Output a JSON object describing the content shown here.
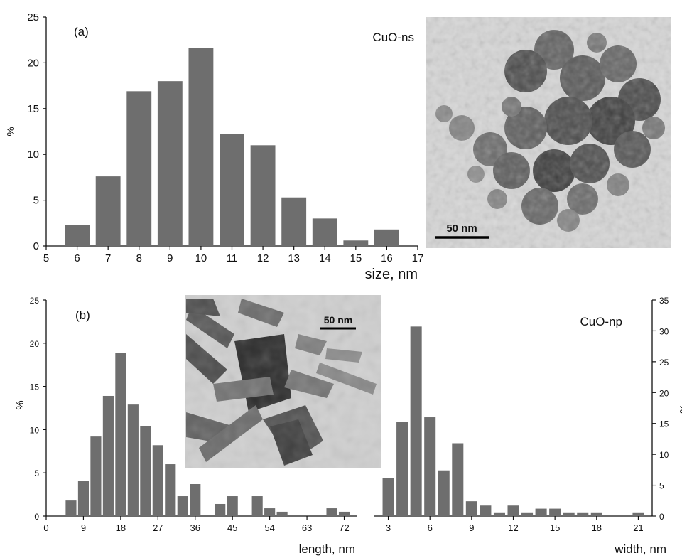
{
  "panel_a": {
    "label": "(a)",
    "sample": "CuO-ns",
    "scale_bar_label": "50 nm"
  },
  "panel_b": {
    "label": "(b)",
    "sample": "CuO-np",
    "scale_bar_label": "50 nm"
  },
  "chart_data": [
    {
      "type": "bar",
      "ylabel": "%",
      "xlabel": "size, nm",
      "xlim": [
        5,
        17
      ],
      "ylim": [
        0,
        25
      ],
      "x_ticks": [
        5,
        6,
        7,
        8,
        9,
        10,
        11,
        12,
        13,
        14,
        15,
        16,
        17
      ],
      "y_ticks": [
        0,
        5,
        10,
        15,
        20,
        25
      ],
      "bar_width": 0.8,
      "x": [
        6,
        7,
        8,
        9,
        10,
        11,
        12,
        13,
        14,
        15,
        16
      ],
      "values": [
        2.3,
        7.6,
        16.9,
        18.0,
        21.6,
        12.2,
        11.0,
        5.3,
        3.0,
        0.6,
        1.8
      ],
      "grid": false,
      "color": "#6e6e6e"
    },
    {
      "type": "bar",
      "ylabel": "%",
      "xlabel": "length, nm",
      "xlim": [
        0,
        75
      ],
      "ylim": [
        0,
        25
      ],
      "x_ticks": [
        0,
        9,
        18,
        27,
        36,
        45,
        54,
        63,
        72
      ],
      "y_ticks": [
        0,
        5,
        10,
        15,
        20,
        25
      ],
      "bar_width": 2.6,
      "x": [
        6,
        9,
        12,
        15,
        18,
        21,
        24,
        27,
        30,
        33,
        36,
        42,
        45,
        51,
        54,
        57,
        69,
        72
      ],
      "values": [
        1.8,
        4.1,
        9.2,
        13.9,
        18.9,
        12.9,
        10.4,
        8.2,
        6.0,
        2.3,
        3.7,
        1.4,
        2.3,
        2.3,
        0.9,
        0.5,
        0.9,
        0.5
      ],
      "grid": false,
      "color": "#6e6e6e"
    },
    {
      "type": "bar",
      "ylabel": "%",
      "xlabel": "width, nm",
      "xlim": [
        2,
        22
      ],
      "ylim": [
        0,
        35
      ],
      "x_ticks": [
        3,
        6,
        9,
        12,
        15,
        18,
        21
      ],
      "y_ticks": [
        0,
        5,
        10,
        15,
        20,
        25,
        30,
        35
      ],
      "bar_width": 0.82,
      "x": [
        3,
        4,
        5,
        6,
        7,
        8,
        9,
        10,
        11,
        12,
        13,
        14,
        15,
        16,
        17,
        18,
        21
      ],
      "values": [
        6.2,
        15.3,
        30.7,
        16.0,
        7.4,
        11.8,
        2.4,
        1.7,
        0.6,
        1.7,
        0.6,
        1.2,
        1.2,
        0.6,
        0.6,
        0.6,
        0.6
      ],
      "grid": false,
      "color": "#6e6e6e"
    }
  ]
}
